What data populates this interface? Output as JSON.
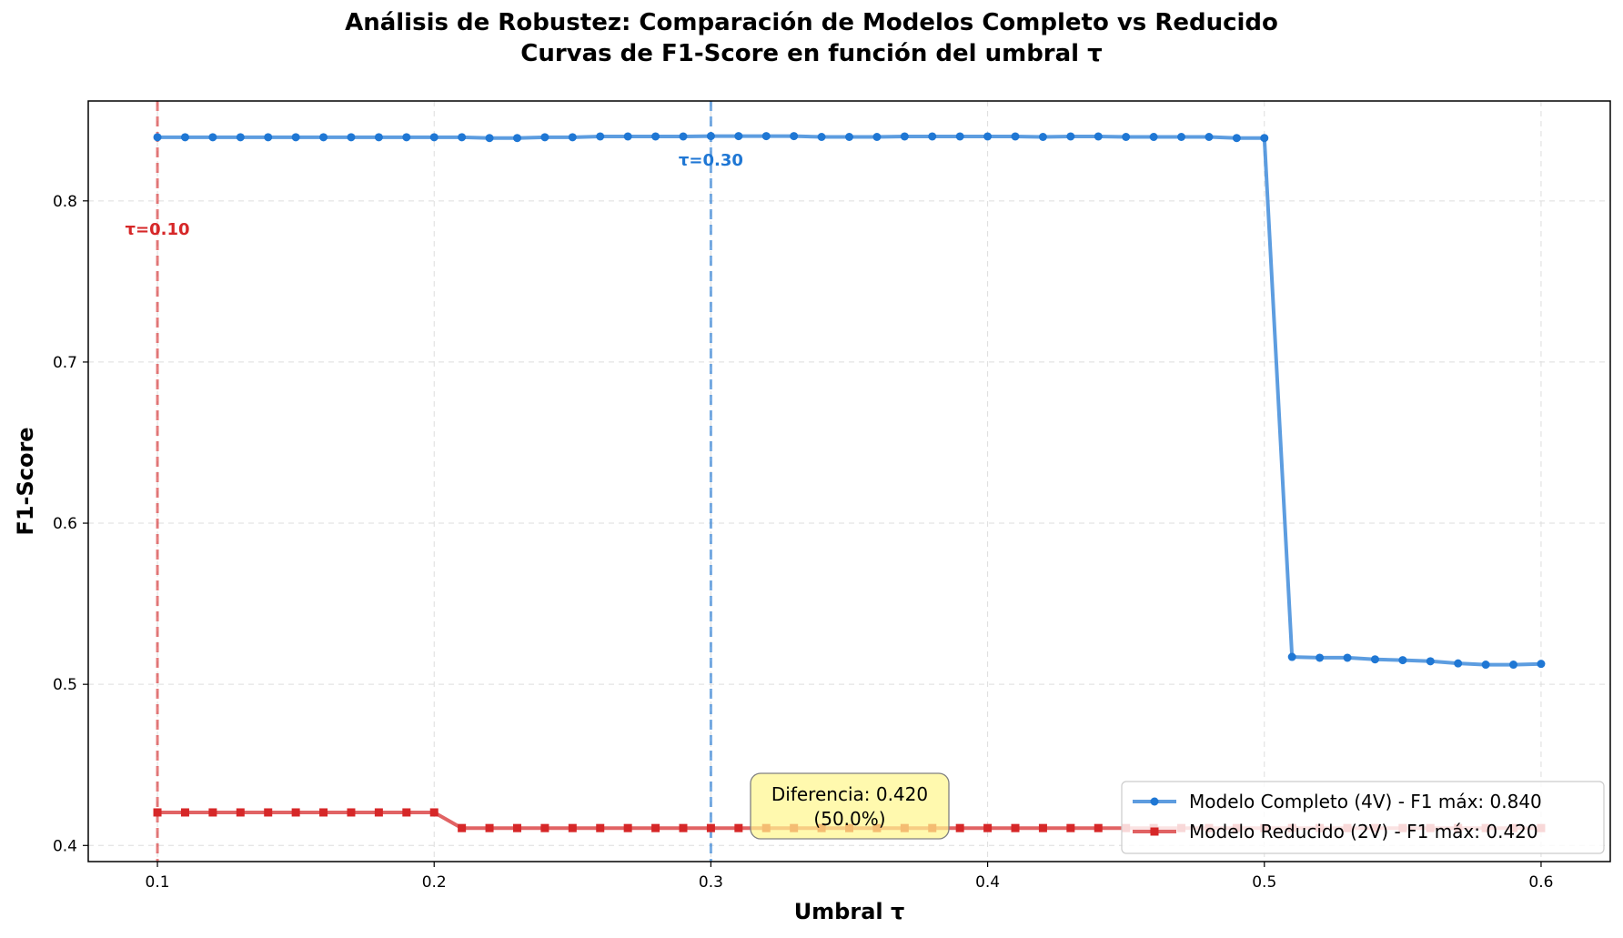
{
  "chart_data": {
    "type": "line",
    "title": "Análisis de Robustez: Comparación de Modelos Completo vs Reducido",
    "subtitle": "Curvas de F1-Score en función del umbral τ",
    "xlabel": "Umbral τ",
    "ylabel": "F1-Score",
    "xlim": [
      0.075,
      0.625
    ],
    "ylim": [
      0.39,
      0.862
    ],
    "xticks": [
      0.1,
      0.2,
      0.3,
      0.4,
      0.5,
      0.6
    ],
    "xtick_labels": [
      "0.1",
      "0.2",
      "0.3",
      "0.4",
      "0.5",
      "0.6"
    ],
    "yticks": [
      0.4,
      0.5,
      0.6,
      0.7,
      0.8
    ],
    "ytick_labels": [
      "0.4",
      "0.5",
      "0.6",
      "0.7",
      "0.8"
    ],
    "grid": true,
    "legend_position": "lower-right",
    "x": [
      0.1,
      0.11,
      0.12,
      0.13,
      0.14,
      0.15,
      0.16,
      0.17,
      0.18,
      0.19,
      0.2,
      0.21,
      0.22,
      0.23,
      0.24,
      0.25,
      0.26,
      0.27,
      0.28,
      0.29,
      0.3,
      0.31,
      0.32,
      0.33,
      0.34,
      0.35,
      0.36,
      0.37,
      0.38,
      0.39,
      0.4,
      0.41,
      0.42,
      0.43,
      0.44,
      0.45,
      0.46,
      0.47,
      0.48,
      0.49,
      0.5,
      0.51,
      0.52,
      0.53,
      0.54,
      0.55,
      0.56,
      0.57,
      0.58,
      0.59,
      0.6
    ],
    "series": [
      {
        "name": "Modelo Completo (4V) - F1 máx: 0.840",
        "color": "#1f77d4",
        "marker": "circle",
        "values": [
          0.8395,
          0.8395,
          0.8395,
          0.8395,
          0.8395,
          0.8395,
          0.8395,
          0.8395,
          0.8395,
          0.8395,
          0.8395,
          0.8395,
          0.839,
          0.839,
          0.8395,
          0.8395,
          0.84,
          0.84,
          0.84,
          0.84,
          0.8402,
          0.8402,
          0.8402,
          0.8402,
          0.8397,
          0.8397,
          0.8397,
          0.84,
          0.84,
          0.84,
          0.84,
          0.84,
          0.8397,
          0.84,
          0.84,
          0.8397,
          0.8397,
          0.8397,
          0.8397,
          0.839,
          0.839,
          0.517,
          0.5165,
          0.5165,
          0.5155,
          0.515,
          0.5143,
          0.513,
          0.5122,
          0.5122,
          0.5127
        ]
      },
      {
        "name": "Modelo Reducido (2V) - F1 máx: 0.420",
        "color": "#d62728",
        "marker": "square",
        "values": [
          0.4205,
          0.4205,
          0.4205,
          0.4205,
          0.4205,
          0.4205,
          0.4205,
          0.4205,
          0.4205,
          0.4205,
          0.4205,
          0.4108,
          0.4108,
          0.4108,
          0.4108,
          0.4108,
          0.4108,
          0.4108,
          0.4108,
          0.4108,
          0.4108,
          0.4108,
          0.4108,
          0.4108,
          0.4108,
          0.4108,
          0.4108,
          0.4108,
          0.4108,
          0.4108,
          0.4108,
          0.4108,
          0.4108,
          0.4108,
          0.4108,
          0.4108,
          0.4108,
          0.4108,
          0.4108,
          0.4108,
          0.4108,
          0.4108,
          0.4108,
          0.4108,
          0.4108,
          0.4108,
          0.4108,
          0.4108,
          0.4108,
          0.4108,
          0.4108
        ]
      }
    ],
    "reference_lines": [
      {
        "x": 0.1,
        "label": "τ=0.10",
        "color": "#d62728"
      },
      {
        "x": 0.3,
        "label": "τ=0.30",
        "color": "#1f77d4"
      }
    ],
    "annotation": {
      "line1": "Diferencia: 0.420",
      "line2": "(50.0%)",
      "x": 0.3,
      "y": 0.42,
      "bg_color": "#fff68f"
    }
  }
}
